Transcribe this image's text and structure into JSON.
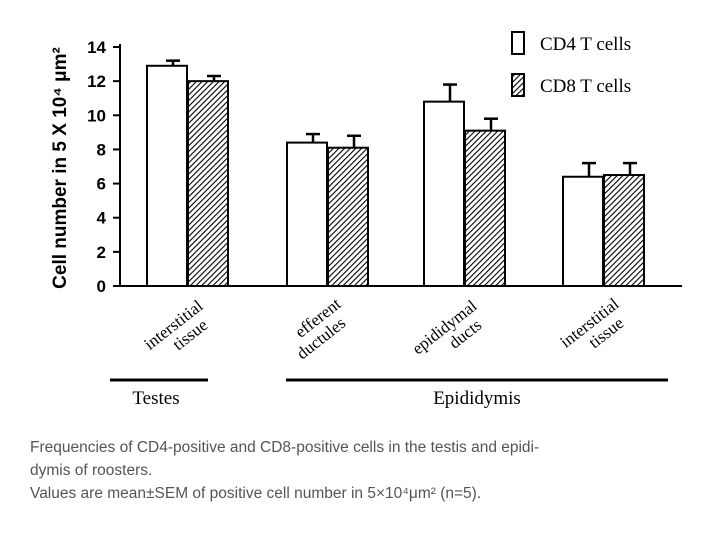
{
  "chart_data": {
    "type": "bar",
    "categories": [
      [
        "interstitial",
        "tissue"
      ],
      [
        "efferent",
        "ductules"
      ],
      [
        "epididymal",
        "ducts"
      ],
      [
        "interstitial",
        "tissue"
      ]
    ],
    "series": [
      {
        "name": "CD4 T cells",
        "values": [
          12.9,
          8.4,
          10.8,
          6.4
        ],
        "errors": [
          0.3,
          0.5,
          1.0,
          0.8
        ],
        "fill": "#ffffff"
      },
      {
        "name": "CD8 T cells",
        "values": [
          12.0,
          8.1,
          9.1,
          6.5
        ],
        "errors": [
          0.3,
          0.7,
          0.7,
          0.7
        ],
        "fill": "hatched"
      }
    ],
    "ylabel": "Cell number in 5 X 10⁴ μm²",
    "ylim": [
      0,
      14
    ],
    "yticks": [
      0,
      2,
      4,
      6,
      8,
      10,
      12,
      14
    ],
    "groups": [
      {
        "label": "Testes",
        "category_indices": [
          0
        ]
      },
      {
        "label": "Epididymis",
        "category_indices": [
          1,
          2,
          3
        ]
      }
    ],
    "legend_position": "top-right"
  },
  "caption": {
    "line1": "Frequencies of CD4-positive and CD8-positive cells in the testis and epidi-",
    "line2": "dymis of roosters.",
    "line3": "Values are mean±SEM of positive cell number in 5×10⁴μm² (n=5)."
  }
}
